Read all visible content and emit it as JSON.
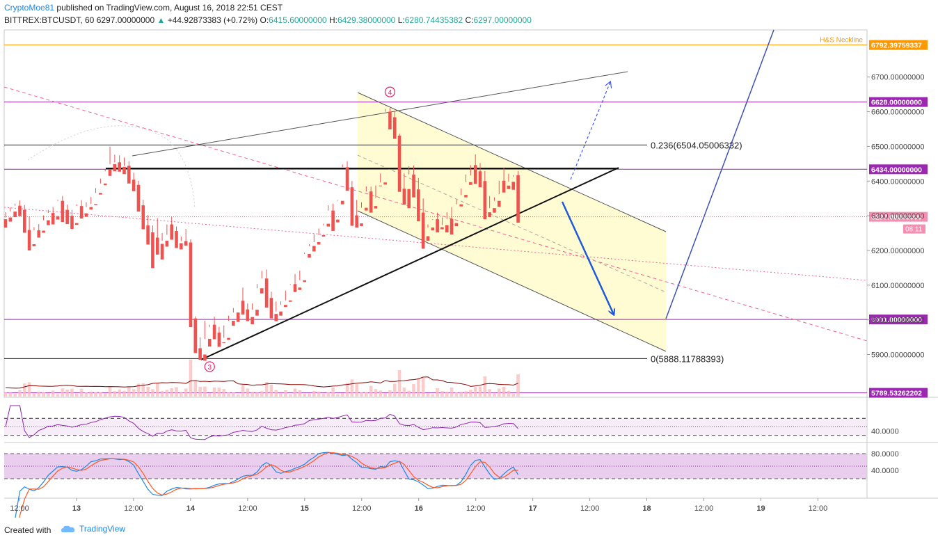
{
  "header": {
    "author": "CryptoMoe81",
    "published": "published on TradingView.com, August 16, 2018 22:51 CEST",
    "symbol": "BITTREX:BTCUSDT, 60",
    "last": "6297.00000000",
    "change_arrow": "▲",
    "change": "+44.92873383 (+0.72%)",
    "o_label": "O:",
    "o": "6415.60000000",
    "h_label": "H:",
    "h": "6429.38000000",
    "l_label": "L:",
    "l": "6280.74435382",
    "c_label": "C:",
    "c": "6297.00000000"
  },
  "footer": {
    "created_with": "Created with",
    "brand": "TradingView",
    "brand_icon": "tradingview-cloud-icon"
  },
  "colors": {
    "up": "#26a69a",
    "down": "#ef5350",
    "level": "#9c27b0",
    "neckline": "#ff9800",
    "trend": "#3f51b5",
    "channel_fill": "#fff9c4"
  },
  "chart_data": {
    "type": "candlestick",
    "price_axis": {
      "min": 5770,
      "max": 6820,
      "ticks": [
        {
          "value": 5900,
          "label": "5900.00000000"
        },
        {
          "value": 6000,
          "label": "6000.00000000"
        },
        {
          "value": 6100,
          "label": "6100.00000000"
        },
        {
          "value": 6200,
          "label": "6200.00000000"
        },
        {
          "value": 6300,
          "label": "6300.00000000"
        },
        {
          "value": 6400,
          "label": "6400.00000000"
        },
        {
          "value": 6500,
          "label": "6500.00000000"
        },
        {
          "value": 6600,
          "label": "6600.00000000"
        },
        {
          "value": 6700,
          "label": "6700.00000000"
        }
      ]
    },
    "time_axis": {
      "ticks": [
        {
          "t": 0,
          "label": "12:00",
          "bold": false
        },
        {
          "t": 12,
          "label": "13",
          "bold": true
        },
        {
          "t": 24,
          "label": "12:00",
          "bold": false
        },
        {
          "t": 36,
          "label": "14",
          "bold": true
        },
        {
          "t": 48,
          "label": "12:00",
          "bold": false
        },
        {
          "t": 60,
          "label": "15",
          "bold": true
        },
        {
          "t": 72,
          "label": "12:00",
          "bold": false
        },
        {
          "t": 84,
          "label": "16",
          "bold": true
        },
        {
          "t": 96,
          "label": "12:00",
          "bold": false
        },
        {
          "t": 108,
          "label": "17",
          "bold": true
        },
        {
          "t": 120,
          "label": "12:00",
          "bold": false
        },
        {
          "t": 132,
          "label": "18",
          "bold": true
        },
        {
          "t": 144,
          "label": "12:00",
          "bold": false
        },
        {
          "t": 156,
          "label": "19",
          "bold": true
        },
        {
          "t": 168,
          "label": "12:00",
          "bold": false
        }
      ]
    },
    "levels": [
      {
        "value": 6792.39759337,
        "label": "6792.39759337",
        "color": "#ff9800",
        "name": "H&S Neckline"
      },
      {
        "value": 6628,
        "label": "6628.00000000",
        "color": "#9c27b0"
      },
      {
        "value": 6434,
        "label": "6434.00000000",
        "color": "#9c27b0"
      },
      {
        "value": 6001,
        "label": "6001.00000000",
        "color": "#9c27b0"
      },
      {
        "value": 5789.53262202,
        "label": "5789.53262202",
        "color": "#9c27b0"
      }
    ],
    "last_price": {
      "value": 6297,
      "label": "6297.00000000",
      "countdown": "08:11"
    },
    "fib": [
      {
        "value": 6504.05006332,
        "label": "0.236(6504.05006332)"
      },
      {
        "value": 5888.11788393,
        "label": "0(5888.11788393)"
      }
    ],
    "wave_labels": [
      {
        "t": 81,
        "price": 6657,
        "label": "4"
      },
      {
        "t": 43,
        "price": 5865,
        "label": "3"
      }
    ],
    "rsi": {
      "ticks": [
        {
          "value": 40,
          "label": "40.0000"
        }
      ]
    },
    "stoch": {
      "ticks": [
        {
          "value": 80,
          "label": "80.0000"
        },
        {
          "value": 40,
          "label": "40.0000"
        }
      ]
    },
    "candles": [
      [
        6290,
        6310,
        6295,
        6266
      ],
      [
        6295,
        6324,
        6312,
        6283
      ],
      [
        6312,
        6335,
        6329,
        6296
      ],
      [
        6329,
        6344,
        6317,
        6299
      ],
      [
        6317,
        6331,
        6259,
        6251
      ],
      [
        6259,
        6298,
        6218,
        6200
      ],
      [
        6218,
        6267,
        6258,
        6212
      ],
      [
        6258,
        6276,
        6257,
        6237
      ],
      [
        6257,
        6301,
        6287,
        6251
      ],
      [
        6287,
        6317,
        6308,
        6273
      ],
      [
        6308,
        6325,
        6299,
        6275
      ],
      [
        6299,
        6346,
        6343,
        6289
      ],
      [
        6343,
        6357,
        6317,
        6282
      ],
      [
        6317,
        6332,
        6300,
        6276
      ],
      [
        6300,
        6317,
        6279,
        6262
      ],
      [
        6279,
        6333,
        6328,
        6274
      ],
      [
        6328,
        6345,
        6307,
        6292
      ],
      [
        6307,
        6339,
        6325,
        6297
      ],
      [
        6325,
        6354,
        6334,
        6318
      ],
      [
        6334,
        6380,
        6366,
        6331
      ],
      [
        6366,
        6407,
        6393,
        6361
      ],
      [
        6393,
        6428,
        6434,
        6388
      ],
      [
        6434,
        6499,
        6449,
        6415
      ],
      [
        6449,
        6476,
        6454,
        6428
      ],
      [
        6454,
        6474,
        6441,
        6427
      ],
      [
        6441,
        6468,
        6444,
        6420
      ],
      [
        6444,
        6457,
        6404,
        6393
      ],
      [
        6404,
        6424,
        6389,
        6371
      ],
      [
        6389,
        6401,
        6330,
        6312
      ],
      [
        6330,
        6346,
        6272,
        6261
      ],
      [
        6272,
        6302,
        6252,
        6217
      ],
      [
        6252,
        6272,
        6237,
        6149
      ],
      [
        6237,
        6293,
        6219,
        6188
      ],
      [
        6219,
        6250,
        6228,
        6174
      ],
      [
        6228,
        6245,
        6275,
        6211
      ],
      [
        6275,
        6297,
        6256,
        6231
      ],
      [
        6256,
        6269,
        6221,
        6207
      ],
      [
        6221,
        6240,
        6227,
        6203
      ],
      [
        6227,
        6262,
        6223,
        6214
      ],
      [
        6223,
        6232,
        6004,
        5979
      ],
      [
        6004,
        6010,
        5918,
        5904
      ],
      [
        5918,
        5950,
        5900,
        5885
      ],
      [
        5900,
        5997,
        5945,
        5882
      ],
      [
        5945,
        5979,
        5986,
        5923
      ],
      [
        5986,
        6009,
        5963,
        5944
      ],
      [
        5963,
        5980,
        5935,
        5922
      ],
      [
        5935,
        5984,
        5948,
        5934
      ],
      [
        5948,
        6012,
        5997,
        5942
      ],
      [
        5997,
        6034,
        6021,
        5983
      ],
      [
        6021,
        6054,
        6055,
        5994
      ],
      [
        6055,
        6093,
        6030,
        6015
      ],
      [
        6030,
        6047,
        6008,
        5996
      ],
      [
        6008,
        6047,
        6029,
        5987
      ],
      [
        6029,
        6103,
        6091,
        6012
      ],
      [
        6091,
        6141,
        6119,
        6076
      ],
      [
        6119,
        6145,
        6063,
        6035
      ],
      [
        6063,
        6081,
        6017,
        6004
      ],
      [
        6017,
        6053,
        6024,
        5996
      ],
      [
        6024,
        6053,
        6043,
        6012
      ],
      [
        6043,
        6084,
        6056,
        6037
      ],
      [
        6056,
        6101,
        6103,
        6052
      ],
      [
        6103,
        6132,
        6093,
        6080
      ],
      [
        6093,
        6142,
        6114,
        6086
      ],
      [
        6114,
        6194,
        6190,
        6109
      ],
      [
        6190,
        6218,
        6213,
        6179
      ],
      [
        6213,
        6247,
        6224,
        6197
      ],
      [
        6224,
        6263,
        6244,
        6217
      ],
      [
        6244,
        6272,
        6277,
        6240
      ],
      [
        6277,
        6330,
        6315,
        6269
      ],
      [
        6315,
        6335,
        6289,
        6256
      ],
      [
        6289,
        6345,
        6343,
        6281
      ],
      [
        6343,
        6448,
        6440,
        6333
      ],
      [
        6440,
        6457,
        6382,
        6372
      ],
      [
        6382,
        6400,
        6301,
        6271
      ],
      [
        6301,
        6346,
        6278,
        6266
      ],
      [
        6278,
        6339,
        6323,
        6270
      ],
      [
        6323,
        6385,
        6370,
        6315
      ],
      [
        6370,
        6384,
        6328,
        6309
      ],
      [
        6328,
        6352,
        6387,
        6321
      ],
      [
        6387,
        6422,
        6396,
        6386
      ],
      [
        6396,
        6608,
        6600,
        6390
      ],
      [
        6600,
        6611,
        6584,
        6549
      ],
      [
        6584,
        6602,
        6531,
        6522
      ],
      [
        6531,
        6537,
        6378,
        6369
      ],
      [
        6378,
        6422,
        6377,
        6332
      ],
      [
        6377,
        6443,
        6419,
        6322
      ],
      [
        6419,
        6445,
        6376,
        6353
      ],
      [
        6376,
        6409,
        6309,
        6284
      ],
      [
        6309,
        6350,
        6241,
        6205
      ],
      [
        6241,
        6275,
        6266,
        6228
      ],
      [
        6266,
        6288,
        6290,
        6258
      ],
      [
        6290,
        6309,
        6267,
        6252
      ],
      [
        6267,
        6295,
        6273,
        6261
      ],
      [
        6273,
        6310,
        6291,
        6252
      ],
      [
        6291,
        6325,
        6279,
        6246
      ],
      [
        6279,
        6347,
        6333,
        6270
      ],
      [
        6333,
        6379,
        6360,
        6327
      ],
      [
        6360,
        6419,
        6397,
        6353
      ],
      [
        6397,
        6416,
        6446,
        6389
      ],
      [
        6446,
        6477,
        6428,
        6392
      ],
      [
        6428,
        6452,
        6400,
        6382
      ],
      [
        6400,
        6429,
        6310,
        6290
      ],
      [
        6310,
        6357,
        6322,
        6296
      ],
      [
        6322,
        6353,
        6343,
        6309
      ],
      [
        6343,
        6362,
        6401,
        6326
      ],
      [
        6401,
        6438,
        6387,
        6367
      ],
      [
        6387,
        6421,
        6398,
        6377
      ],
      [
        6398,
        6412,
        6417,
        6375
      ],
      [
        6417,
        6429,
        6297,
        6280
      ]
    ]
  }
}
